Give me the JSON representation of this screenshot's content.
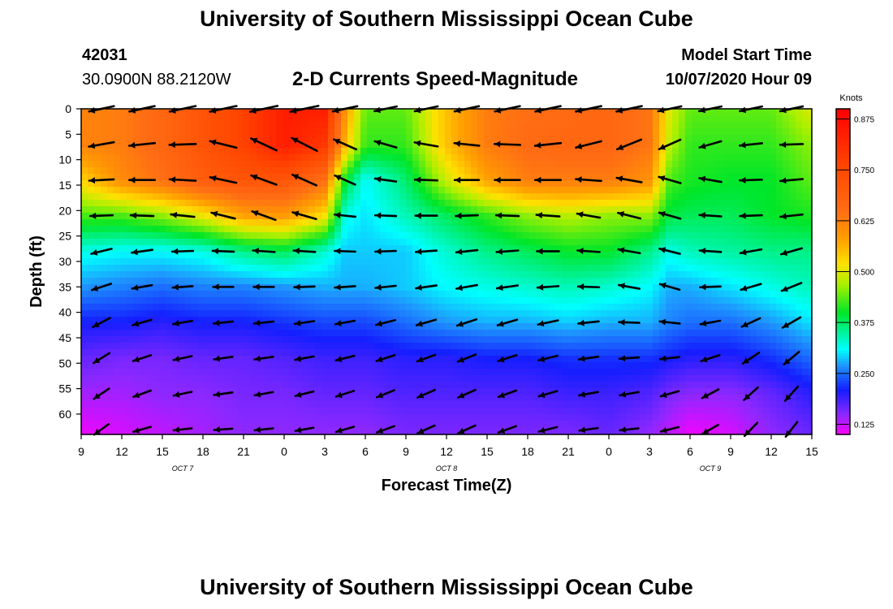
{
  "header": {
    "title": "University of Southern Mississippi Ocean Cube",
    "station": "42031",
    "coords": "30.0900N 88.2120W",
    "subtitle": "2-D Currents Speed-Magnitude",
    "model_start_label": "Model Start Time",
    "model_start_value": "10/07/2020 Hour 09"
  },
  "footer": {
    "title": "University of Southern Mississippi Ocean Cube"
  },
  "chart_data": {
    "type": "heatmap",
    "xlabel": "Forecast Time(Z)",
    "ylabel": "Depth (ft)",
    "x_ticks": [
      "9",
      "12",
      "15",
      "18",
      "21",
      "0",
      "3",
      "6",
      "9",
      "12",
      "15",
      "18",
      "21",
      "0",
      "3",
      "6",
      "9",
      "12",
      "15"
    ],
    "date_labels": [
      {
        "text": "OCT 7",
        "tick": 2.5
      },
      {
        "text": "OCT 8",
        "tick": 9
      },
      {
        "text": "OCT 9",
        "tick": 15.5
      }
    ],
    "y_ticks": [
      0,
      5,
      10,
      15,
      20,
      25,
      30,
      35,
      40,
      45,
      50,
      55,
      60
    ],
    "ylim": [
      0,
      64
    ],
    "colorbar": {
      "unit": "Knots",
      "min": 0.1,
      "max": 0.9,
      "ticks": [
        "0.875",
        "0.750",
        "0.625",
        "0.500",
        "0.375",
        "0.250",
        "0.125"
      ],
      "tick_values": [
        0.875,
        0.75,
        0.625,
        0.5,
        0.375,
        0.25,
        0.125
      ]
    },
    "speed_grid": {
      "x": [
        9,
        12,
        15,
        18,
        21,
        24,
        27,
        28.5,
        30,
        33,
        36,
        39,
        42,
        45,
        48,
        51,
        52.5,
        54,
        57,
        60,
        63
      ],
      "depths": [
        0,
        7,
        14,
        21,
        28,
        35,
        42,
        49,
        56,
        63
      ],
      "rows": [
        [
          0.62,
          0.63,
          0.67,
          0.72,
          0.77,
          0.84,
          0.84,
          0.6,
          0.44,
          0.44,
          0.55,
          0.63,
          0.65,
          0.66,
          0.67,
          0.64,
          0.5,
          0.44,
          0.44,
          0.44,
          0.5
        ],
        [
          0.62,
          0.63,
          0.67,
          0.72,
          0.77,
          0.84,
          0.79,
          0.56,
          0.42,
          0.42,
          0.55,
          0.63,
          0.66,
          0.67,
          0.67,
          0.64,
          0.48,
          0.42,
          0.42,
          0.42,
          0.46
        ],
        [
          0.53,
          0.61,
          0.65,
          0.7,
          0.72,
          0.72,
          0.65,
          0.4,
          0.31,
          0.37,
          0.49,
          0.58,
          0.63,
          0.63,
          0.63,
          0.6,
          0.43,
          0.41,
          0.4,
          0.4,
          0.44
        ],
        [
          0.43,
          0.43,
          0.46,
          0.51,
          0.58,
          0.59,
          0.52,
          0.32,
          0.3,
          0.34,
          0.38,
          0.42,
          0.46,
          0.48,
          0.46,
          0.46,
          0.39,
          0.38,
          0.38,
          0.4,
          0.41
        ],
        [
          0.32,
          0.31,
          0.31,
          0.32,
          0.36,
          0.38,
          0.33,
          0.29,
          0.29,
          0.29,
          0.33,
          0.36,
          0.38,
          0.4,
          0.4,
          0.36,
          0.32,
          0.34,
          0.35,
          0.36,
          0.36
        ],
        [
          0.27,
          0.26,
          0.25,
          0.26,
          0.26,
          0.27,
          0.28,
          0.28,
          0.28,
          0.29,
          0.31,
          0.32,
          0.33,
          0.34,
          0.33,
          0.31,
          0.28,
          0.28,
          0.3,
          0.32,
          0.34
        ],
        [
          0.21,
          0.21,
          0.2,
          0.21,
          0.21,
          0.22,
          0.23,
          0.23,
          0.23,
          0.25,
          0.27,
          0.28,
          0.28,
          0.29,
          0.28,
          0.28,
          0.26,
          0.25,
          0.25,
          0.27,
          0.3
        ],
        [
          0.17,
          0.16,
          0.16,
          0.17,
          0.17,
          0.18,
          0.19,
          0.19,
          0.19,
          0.2,
          0.2,
          0.21,
          0.21,
          0.22,
          0.22,
          0.22,
          0.21,
          0.2,
          0.2,
          0.22,
          0.25
        ],
        [
          0.14,
          0.14,
          0.15,
          0.15,
          0.16,
          0.16,
          0.17,
          0.17,
          0.17,
          0.18,
          0.18,
          0.18,
          0.18,
          0.19,
          0.19,
          0.18,
          0.16,
          0.15,
          0.15,
          0.17,
          0.2
        ],
        [
          0.11,
          0.12,
          0.13,
          0.14,
          0.15,
          0.15,
          0.15,
          0.15,
          0.15,
          0.16,
          0.16,
          0.16,
          0.16,
          0.16,
          0.17,
          0.15,
          0.13,
          0.11,
          0.12,
          0.15,
          0.17
        ]
      ]
    },
    "vectors": {
      "x": [
        10.5,
        13.5,
        16.5,
        19.5,
        22.5,
        25.5,
        28.5,
        31.5,
        34.5,
        37.5,
        40.5,
        43.5,
        46.5,
        49.5,
        52.5,
        55.5,
        58.5,
        61.5
      ],
      "depths": [
        0,
        7,
        14,
        21,
        28,
        35,
        42,
        49,
        56,
        63
      ],
      "directions_deg": [
        [
          192,
          192,
          192,
          192,
          192,
          192,
          192,
          192,
          192,
          192,
          192,
          192,
          192,
          192,
          192,
          192,
          192,
          192
        ],
        [
          190,
          186,
          182,
          166,
          155,
          153,
          156,
          164,
          170,
          174,
          178,
          186,
          194,
          202,
          204,
          196,
          186,
          182
        ],
        [
          183,
          180,
          177,
          168,
          160,
          156,
          156,
          172,
          178,
          180,
          180,
          180,
          176,
          170,
          164,
          170,
          182,
          185
        ],
        [
          182,
          178,
          174,
          166,
          160,
          164,
          174,
          178,
          180,
          182,
          178,
          176,
          170,
          166,
          164,
          176,
          182,
          186
        ],
        [
          194,
          188,
          182,
          178,
          176,
          176,
          178,
          182,
          184,
          186,
          184,
          180,
          176,
          170,
          166,
          176,
          190,
          196
        ],
        [
          198,
          190,
          184,
          180,
          180,
          182,
          184,
          186,
          188,
          190,
          188,
          184,
          178,
          170,
          164,
          182,
          196,
          202
        ],
        [
          208,
          196,
          190,
          186,
          186,
          188,
          190,
          194,
          196,
          198,
          196,
          192,
          186,
          178,
          174,
          190,
          205,
          210
        ],
        [
          212,
          198,
          192,
          188,
          188,
          190,
          194,
          198,
          200,
          202,
          198,
          194,
          188,
          184,
          186,
          198,
          214,
          220
        ],
        [
          214,
          200,
          192,
          188,
          190,
          194,
          198,
          202,
          204,
          204,
          200,
          196,
          190,
          190,
          196,
          208,
          222,
          228
        ],
        [
          216,
          196,
          186,
          184,
          186,
          190,
          196,
          200,
          204,
          204,
          200,
          194,
          188,
          186,
          194,
          210,
          226,
          232
        ]
      ]
    }
  }
}
